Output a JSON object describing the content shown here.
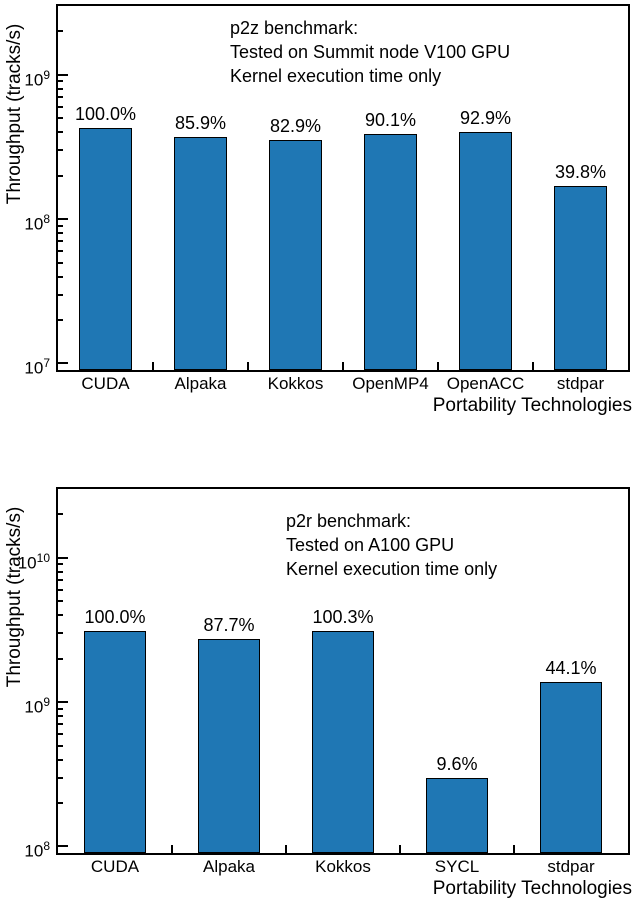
{
  "page": {
    "background": "#ffffff"
  },
  "chart_data": [
    {
      "type": "bar",
      "name": "p2z-benchmark",
      "annotation_lines": [
        "p2z benchmark:",
        "Tested on Summit node V100 GPU",
        "Kernel execution time only"
      ],
      "ylabel": "Throughput (tracks/s)",
      "xlabel": "Portability Technologies",
      "yscale": "log",
      "ylim": [
        9000000.0,
        3000000000.0
      ],
      "ytick_exponents": [
        7,
        8,
        9
      ],
      "categories": [
        "CUDA",
        "Alpaka",
        "Kokkos",
        "OpenMP4",
        "OpenACC",
        "stdpar"
      ],
      "values": [
        430000000.0,
        369000000.0,
        356000000.0,
        387000000.0,
        400000000.0,
        171000000.0
      ],
      "percent_labels": [
        "100.0%",
        "85.9%",
        "82.9%",
        "90.1%",
        "92.9%",
        "39.8%"
      ],
      "legend": "none",
      "grid": "off",
      "bar_color": "#1F77B4",
      "bar_edge_color": "#000000"
    },
    {
      "type": "bar",
      "name": "p2r-benchmark",
      "annotation_lines": [
        "p2r benchmark:",
        "Tested on A100 GPU",
        "Kernel execution time only"
      ],
      "ylabel": "Throughput (tracks/s)",
      "xlabel": "Portability Technologies",
      "yscale": "log",
      "ylim": [
        90000000.0,
        30000000000.0
      ],
      "ytick_exponents": [
        8,
        9,
        10
      ],
      "categories": [
        "CUDA",
        "Alpaka",
        "Kokkos",
        "SYCL",
        "stdpar"
      ],
      "values": [
        3100000000.0,
        2720000000.0,
        3110000000.0,
        298000000.0,
        1370000000.0
      ],
      "percent_labels": [
        "100.0%",
        "87.7%",
        "100.3%",
        "9.6%",
        "44.1%"
      ],
      "legend": "none",
      "grid": "off",
      "bar_color": "#1F77B4",
      "bar_edge_color": "#000000"
    }
  ]
}
